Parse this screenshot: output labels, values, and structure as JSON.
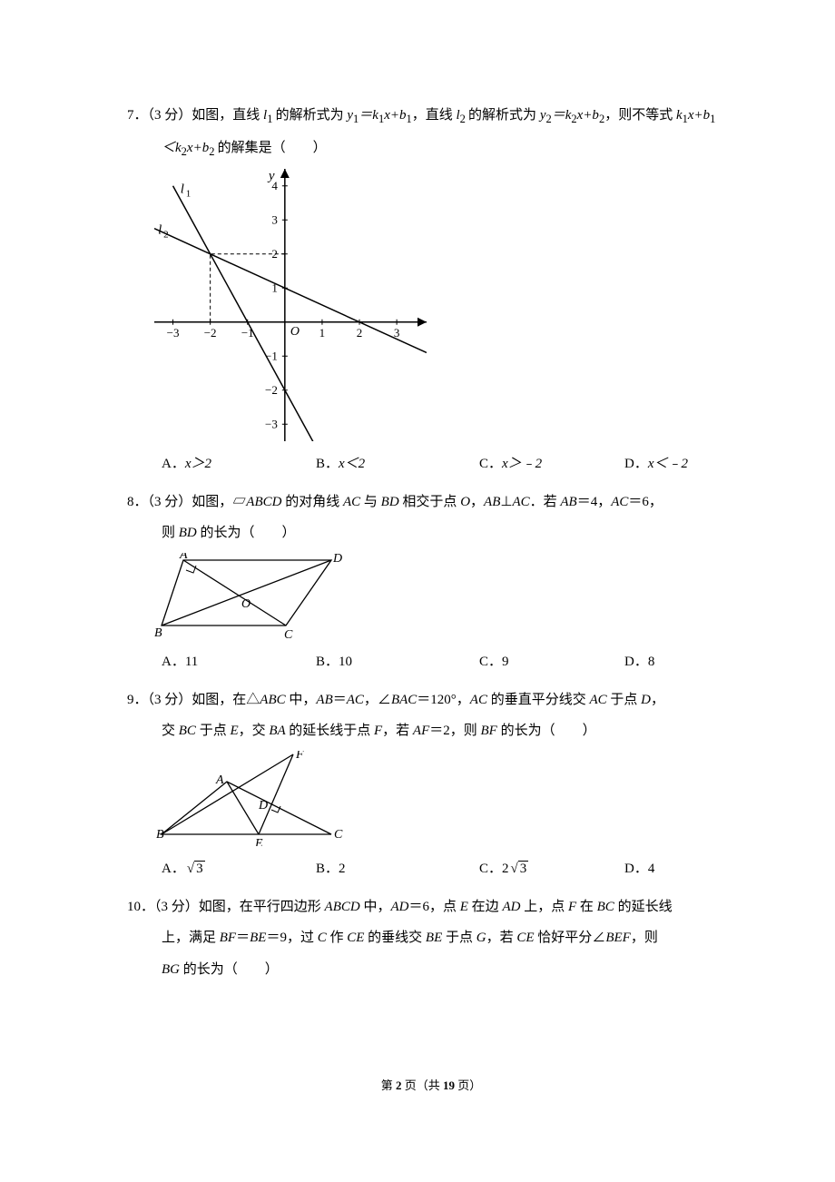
{
  "q7": {
    "number": "7．",
    "points": "（3 分）",
    "text_part1": "如图，直线",
    "l1": " l",
    "l1sub": "1 ",
    "text_part2": "的解析式为",
    "eq1": " y",
    "eq1sub": "1",
    "eq1b": "＝k",
    "eq1c": "1",
    "eq1d": "x+b",
    "eq1e": "1",
    "text_part3": "，直线",
    "l2": " l",
    "l2sub": "2 ",
    "text_part4": "的解析式为",
    "eq2a": " y",
    "eq2b": "2",
    "eq2c": "＝k",
    "eq2d": "2",
    "eq2e": "x+b",
    "eq2f": "2",
    "text_part5": "，则不等式",
    "ineq1": " k",
    "ineq1b": "1",
    "ineq1c": "x+b",
    "ineq1d": "1",
    "line2a": "＜k",
    "line2b": "2",
    "line2c": "x+b",
    "line2d": "2 ",
    "line2e": "的解集是（　　）",
    "optA": "A．",
    "optA_val": "x＞2",
    "optB": "B．",
    "optB_val": "x＜2",
    "optC": "C．",
    "optC_val": "x＞﹣2",
    "optD": "D．",
    "optD_val": "x＜﹣2",
    "graph": {
      "xmin": -3.5,
      "xmax": 3.8,
      "ymin": -3.5,
      "ymax": 4.5,
      "xticks": [
        -3,
        -2,
        -1,
        1,
        2,
        3
      ],
      "yticks": [
        -3,
        -2,
        -1,
        1,
        2,
        3,
        4
      ],
      "l1_label": "l",
      "l1_sub": "1",
      "l2_label": "l",
      "l2_sub": "2",
      "x_label": "x",
      "y_label": "y",
      "origin": "O",
      "line_color": "#000000",
      "axis_color": "#000000",
      "dash_color": "#000000",
      "intersection": [
        -2,
        2
      ],
      "l1_slope": -2,
      "l1_intercept": -2,
      "l2_slope": -0.5,
      "l2_intercept": 1
    }
  },
  "q8": {
    "number": "8．",
    "points": "（3 分）",
    "text1": "如图，▱",
    "abcd": "ABCD ",
    "text2": "的对角线 ",
    "ac": "AC ",
    "text3": "与 ",
    "bd": "BD ",
    "text4": "相交于点 ",
    "o": "O",
    "text5": "，",
    "ab": "AB",
    "perp": "⊥",
    "ac2": "AC",
    "text6": "．若 ",
    "ab2": "AB",
    "eq": "＝4，",
    "ac3": "AC",
    "eq2": "＝6，",
    "line2a": "则 ",
    "bd2": "BD ",
    "line2b": "的长为（　　）",
    "optA": "A．11",
    "optB": "B．10",
    "optC": "C．9",
    "optD": "D．8",
    "fig": {
      "A": [
        32,
        8
      ],
      "B": [
        8,
        80
      ],
      "C": [
        145,
        80
      ],
      "D": [
        195,
        8
      ],
      "O": [
        100,
        44
      ],
      "color": "#000000"
    }
  },
  "q9": {
    "number": "9．",
    "points": "（3 分）",
    "text1": "如图，在△",
    "abc": "ABC ",
    "text2": "中，",
    "ab": "AB",
    "eq1": "＝",
    "ac": "AC",
    "text3": "，∠",
    "bac": "BAC",
    "eq2": "＝120°，",
    "ac2": "AC ",
    "text4": "的垂直平分线交 ",
    "ac3": "AC ",
    "text5": "于点 ",
    "d": "D",
    "text6": "，",
    "line2a": "交 ",
    "bc": "BC ",
    "line2b": "于点 ",
    "e": "E",
    "line2c": "，交 ",
    "ba": "BA ",
    "line2d": "的延长线于点 ",
    "f": "F",
    "line2e": "，若 ",
    "af": "AF",
    "line2f": "＝2，则 ",
    "bf": "BF ",
    "line2g": "的长为（　　）",
    "optA_pre": "A．",
    "optA_sqrt": "3",
    "optB": "B．2",
    "optC_pre": "C．2",
    "optC_sqrt": "3",
    "optD": "D．4",
    "fig": {
      "B": [
        8,
        92
      ],
      "C": [
        195,
        92
      ],
      "A": [
        80,
        34
      ],
      "F": [
        153,
        4
      ],
      "E": [
        115,
        92
      ],
      "D": [
        127,
        58
      ],
      "color": "#000000"
    }
  },
  "q10": {
    "number": "10．",
    "points": "（3 分）",
    "text1": "如图，在平行四边形 ",
    "abcd": "ABCD ",
    "text2": "中，",
    "ad": "AD",
    "eq1": "＝6，点 ",
    "e": "E ",
    "text3": "在边 ",
    "ad2": "AD ",
    "text4": "上，点 ",
    "f": "F ",
    "text5": "在 ",
    "bc": "BC ",
    "text6": "的延长线",
    "line2a": "上，满足 ",
    "bf": "BF",
    "line2b": "＝",
    "be": "BE",
    "line2c": "＝9，过 ",
    "c": "C ",
    "line2d": "作 ",
    "ce": "CE ",
    "line2e": "的垂线交 ",
    "be2": "BE ",
    "line2f": "于点 ",
    "g": "G",
    "line2g": "，若 ",
    "ce2": "CE ",
    "line2h": "恰好平分∠",
    "bef": "BEF",
    "line2i": "，则",
    "line3a": "BG ",
    "line3b": "的长为（　　）"
  },
  "footer": {
    "pre": "第 ",
    "cur": "2",
    "mid": " 页（共 ",
    "total": "19",
    "post": " 页）"
  }
}
